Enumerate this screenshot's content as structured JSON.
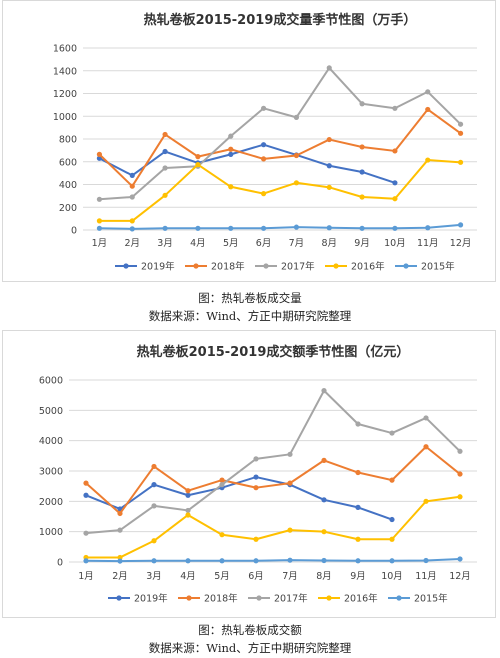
{
  "figures": [
    {
      "caption": "图：热轧卷板成交量",
      "source": "数据来源：Wind、方正中期研究院整理"
    },
    {
      "caption": "图：热轧卷板成交额",
      "source": "数据来源：Wind、方正中期研究院整理"
    }
  ],
  "chart_data": [
    {
      "type": "line",
      "title": "热轧卷板2015-2019成交量季节性图（万手）",
      "categories": [
        "1月",
        "2月",
        "3月",
        "4月",
        "5月",
        "6月",
        "7月",
        "8月",
        "9月",
        "10月",
        "11月",
        "12月"
      ],
      "ylim": [
        0,
        1600
      ],
      "yticks": [
        0,
        200,
        400,
        600,
        800,
        1000,
        1200,
        1400,
        1600
      ],
      "grid": true,
      "legend_position": "bottom",
      "series": [
        {
          "name": "2019年",
          "color": "#4472C4",
          "values": [
            630,
            480,
            690,
            590,
            665,
            750,
            660,
            565,
            510,
            415,
            null,
            null
          ]
        },
        {
          "name": "2018年",
          "color": "#ED7D31",
          "values": [
            665,
            385,
            840,
            645,
            710,
            625,
            655,
            795,
            730,
            695,
            1060,
            850
          ]
        },
        {
          "name": "2017年",
          "color": "#A5A5A5",
          "values": [
            270,
            290,
            545,
            560,
            825,
            1070,
            990,
            1425,
            1110,
            1070,
            1215,
            930
          ]
        },
        {
          "name": "2016年",
          "color": "#FFC000",
          "values": [
            80,
            80,
            305,
            575,
            380,
            320,
            415,
            375,
            290,
            275,
            615,
            595
          ]
        },
        {
          "name": "2015年",
          "color": "#5B9BD5",
          "values": [
            15,
            10,
            15,
            15,
            15,
            15,
            25,
            20,
            15,
            15,
            20,
            45
          ]
        }
      ]
    },
    {
      "type": "line",
      "title": "热轧卷板2015-2019成交额季节性图（亿元）",
      "categories": [
        "1月",
        "2月",
        "3月",
        "4月",
        "5月",
        "6月",
        "7月",
        "8月",
        "9月",
        "10月",
        "11月",
        "12月"
      ],
      "ylim": [
        0,
        6000
      ],
      "yticks": [
        0,
        1000,
        2000,
        3000,
        4000,
        5000,
        6000
      ],
      "grid": true,
      "legend_position": "bottom",
      "series": [
        {
          "name": "2019年",
          "color": "#4472C4",
          "values": [
            2200,
            1750,
            2550,
            2200,
            2450,
            2800,
            2550,
            2050,
            1800,
            1400,
            null,
            null
          ]
        },
        {
          "name": "2018年",
          "color": "#ED7D31",
          "values": [
            2600,
            1600,
            3150,
            2350,
            2700,
            2450,
            2600,
            3350,
            2950,
            2700,
            3800,
            2900
          ]
        },
        {
          "name": "2017年",
          "color": "#A5A5A5",
          "values": [
            950,
            1050,
            1850,
            1700,
            2550,
            3400,
            3550,
            5650,
            4550,
            4250,
            4750,
            3650
          ]
        },
        {
          "name": "2016年",
          "color": "#FFC000",
          "values": [
            150,
            150,
            700,
            1550,
            900,
            750,
            1050,
            1000,
            750,
            750,
            2000,
            2150
          ]
        },
        {
          "name": "2015年",
          "color": "#5B9BD5",
          "values": [
            40,
            30,
            40,
            40,
            40,
            40,
            60,
            50,
            40,
            40,
            50,
            100
          ]
        }
      ]
    }
  ]
}
